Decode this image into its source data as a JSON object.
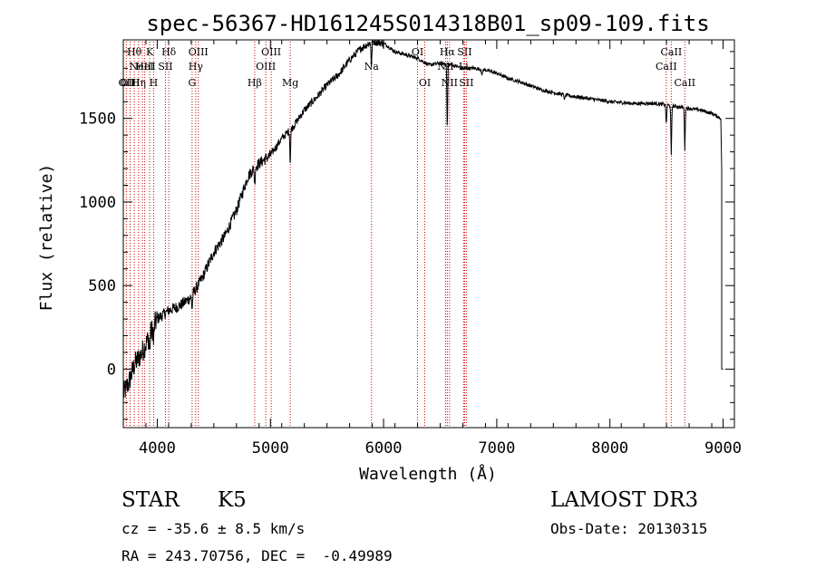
{
  "chart_data": {
    "type": "line",
    "title": "spec-56367-HD161245S014318B01_sp09-109.fits",
    "xlabel": "Wavelength (Å)",
    "ylabel": "Flux (relative)",
    "xlim": [
      3700,
      9100
    ],
    "ylim": [
      -350,
      1970
    ],
    "xticks": [
      4000,
      5000,
      6000,
      7000,
      8000,
      9000
    ],
    "yticks": [
      0,
      500,
      1000,
      1500
    ],
    "xtick_labels": [
      "4000",
      "5000",
      "6000",
      "7000",
      "8000",
      "9000"
    ],
    "ytick_labels": [
      "0",
      "500",
      "1000",
      "1500"
    ],
    "series": [
      {
        "name": "spectrum",
        "x": [
          3700,
          3750,
          3800,
          3850,
          3900,
          3950,
          4000,
          4100,
          4200,
          4300,
          4400,
          4500,
          4600,
          4700,
          4800,
          4850,
          4900,
          5000,
          5100,
          5200,
          5300,
          5400,
          5500,
          5600,
          5700,
          5800,
          5900,
          6000,
          6100,
          6200,
          6300,
          6400,
          6500,
          6600,
          6700,
          6800,
          6900,
          7000,
          7100,
          7200,
          7400,
          7600,
          7800,
          8000,
          8200,
          8400,
          8500,
          8600,
          8700,
          8800,
          8900,
          8980
        ],
        "y": [
          -150,
          -80,
          30,
          80,
          150,
          230,
          300,
          350,
          380,
          430,
          550,
          700,
          800,
          950,
          1150,
          1200,
          1230,
          1280,
          1380,
          1450,
          1550,
          1620,
          1700,
          1760,
          1850,
          1920,
          1960,
          1950,
          1900,
          1880,
          1860,
          1820,
          1830,
          1820,
          1800,
          1800,
          1790,
          1770,
          1740,
          1720,
          1670,
          1640,
          1620,
          1600,
          1590,
          1590,
          1580,
          1570,
          1560,
          1550,
          1530,
          1500
        ]
      }
    ],
    "absorption_lines": [
      {
        "x": 6563,
        "depth": 380
      },
      {
        "x": 5175,
        "depth": 200
      },
      {
        "x": 5893,
        "depth": 150
      },
      {
        "x": 4861,
        "depth": 100
      },
      {
        "x": 8498,
        "depth": 120
      },
      {
        "x": 8542,
        "depth": 300
      },
      {
        "x": 8662,
        "depth": 250
      },
      {
        "x": 3933,
        "depth": 100
      },
      {
        "x": 3968,
        "depth": 100
      },
      {
        "x": 4308,
        "depth": 80
      },
      {
        "x": 6870,
        "depth": 40
      },
      {
        "x": 7600,
        "depth": 30
      }
    ],
    "line_markers": [
      {
        "x": 3727,
        "label": "OII",
        "row": 3
      },
      {
        "x": 3760,
        "label": "OIII",
        "row": 3
      },
      {
        "x": 3797,
        "label": "Hθ",
        "row": 1
      },
      {
        "x": 3835,
        "label": "Hη",
        "row": 3
      },
      {
        "x": 3869,
        "label": "NeIII",
        "row": 2
      },
      {
        "x": 3889,
        "label": "HeI",
        "row": 2
      },
      {
        "x": 3933,
        "label": "K",
        "row": 1
      },
      {
        "x": 3968,
        "label": "H",
        "row": 3
      },
      {
        "x": 4072,
        "label": "SII",
        "row": 2
      },
      {
        "x": 4102,
        "label": "Hδ",
        "row": 1
      },
      {
        "x": 4308,
        "label": "G",
        "row": 3
      },
      {
        "x": 4340,
        "label": "Hγ",
        "row": 2
      },
      {
        "x": 4363,
        "label": "OIII",
        "row": 1
      },
      {
        "x": 4861,
        "label": "Hβ",
        "row": 3
      },
      {
        "x": 4959,
        "label": "OIII",
        "row": 2
      },
      {
        "x": 5007,
        "label": "OIII",
        "row": 1
      },
      {
        "x": 5175,
        "label": "Mg",
        "row": 3
      },
      {
        "x": 5893,
        "label": "Na",
        "row": 2
      },
      {
        "x": 6300,
        "label": "OI",
        "row": 1
      },
      {
        "x": 6364,
        "label": "OI",
        "row": 3
      },
      {
        "x": 6548,
        "label": "NII",
        "row": 2
      },
      {
        "x": 6563,
        "label": "Hα",
        "row": 1
      },
      {
        "x": 6583,
        "label": "NII",
        "row": 3
      },
      {
        "x": 6707,
        "label": "Li",
        "row": 2
      },
      {
        "x": 6716,
        "label": "SII",
        "row": 1
      },
      {
        "x": 6731,
        "label": "SII",
        "row": 3
      },
      {
        "x": 8498,
        "label": "CaII",
        "row": 2
      },
      {
        "x": 8542,
        "label": "CaII",
        "row": 1
      },
      {
        "x": 8662,
        "label": "CaII",
        "row": 3
      }
    ],
    "marker_color": "#cc0000"
  },
  "info": {
    "object_class": "STAR",
    "subclass": "K5",
    "survey": "LAMOST DR3",
    "cz": "cz = -35.6 ± 8.5 km/s",
    "obs_date": "Obs-Date: 20130315",
    "coords": "RA = 243.70756, DEC =  -0.49989"
  }
}
